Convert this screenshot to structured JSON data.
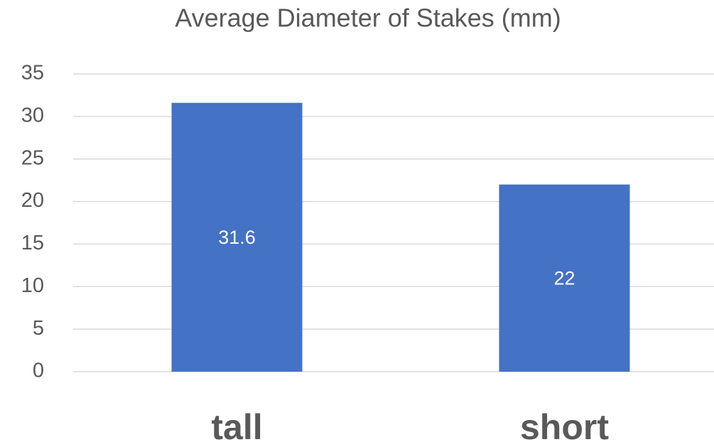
{
  "chart_data": {
    "type": "bar",
    "title": "Average Diameter of Stakes (mm)",
    "categories": [
      "tall",
      "short"
    ],
    "values": [
      31.6,
      22
    ],
    "color": "#4472c4",
    "ylim": [
      0,
      35
    ],
    "yticks": [
      0,
      5,
      10,
      15,
      20,
      25,
      30,
      35
    ],
    "grid": true
  }
}
